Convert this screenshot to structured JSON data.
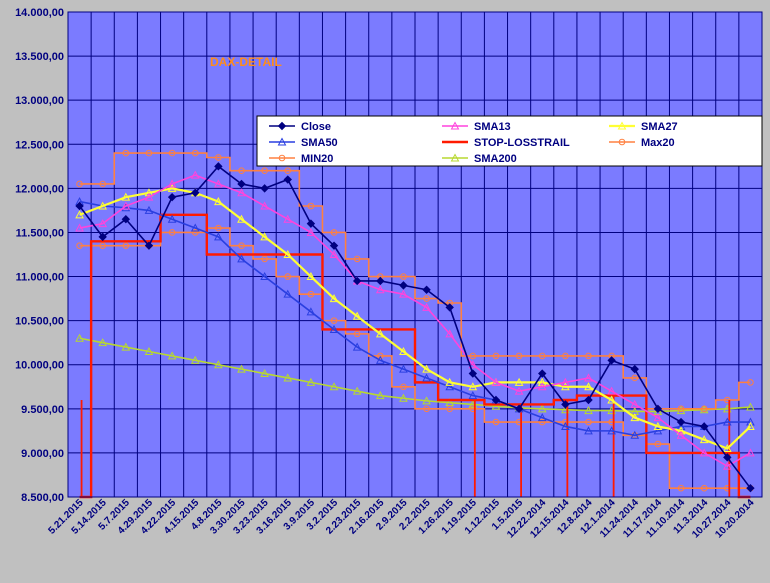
{
  "chart_data": {
    "type": "line",
    "title": "DAX-DETAIL",
    "xlabel": "",
    "ylabel": "",
    "ylim": [
      8500,
      14000
    ],
    "yticks": [
      "8.500,00",
      "9.000,00",
      "9.500,00",
      "10.000,00",
      "10.500,00",
      "11.000,00",
      "11.500,00",
      "12.000,00",
      "12.500,00",
      "13.000,00",
      "13.500,00",
      "14.000,00"
    ],
    "xticks": [
      "5.21.2015",
      "5.14.2015",
      "5.7.2015",
      "4.29.2015",
      "4.22.2015",
      "4.15.2015",
      "4.8.2015",
      "3.30.2015",
      "3.23.2015",
      "3.16.2015",
      "3.9.2015",
      "3.2.2015",
      "2.23.2015",
      "2.16.2015",
      "2.9.2015",
      "2.2.2015",
      "1.26.2015",
      "1.19.2015",
      "1.12.2015",
      "1.5.2015",
      "12.22.2014",
      "12.15.2014",
      "12.8.2014",
      "12.1.2014",
      "11.24.2014",
      "11.17.2014",
      "11.10.2014",
      "11.3.2014",
      "10.27.2014",
      "10.20.2014"
    ],
    "grid": true,
    "legend_position": "top-right",
    "colors": {
      "plot_bg": "#7b7bff",
      "grid": "#000080",
      "page_bg": "#c0c0c0",
      "close": "#000080",
      "sma13": "#ff44dd",
      "sma27": "#ffff33",
      "sma50": "#2a3fe0",
      "stop": "#ff1a00",
      "max20": "#ff8040",
      "min20": "#ff8040",
      "sma200": "#b8d830",
      "close_peak": "#7b2a10"
    },
    "series": [
      {
        "name": "Close",
        "key": "close",
        "x": [
          0,
          1,
          2,
          3,
          4,
          5,
          6,
          7,
          8,
          9,
          10,
          11,
          12,
          13,
          14,
          15,
          16,
          17,
          18,
          19,
          20,
          21,
          22,
          23,
          24,
          25,
          26,
          27,
          28,
          29
        ],
        "values": [
          11800,
          11450,
          11650,
          11350,
          11900,
          11950,
          12250,
          12050,
          12000,
          12100,
          11600,
          11350,
          10950,
          10950,
          10900,
          10850,
          10650,
          9900,
          9600,
          9500,
          9900,
          9550,
          9600,
          10050,
          9950,
          9500,
          9350,
          9300,
          8950,
          8600
        ]
      },
      {
        "name": "SMA13",
        "key": "sma13",
        "x": [
          0,
          1,
          2,
          3,
          4,
          5,
          6,
          7,
          8,
          9,
          10,
          11,
          12,
          13,
          14,
          15,
          16,
          17,
          18,
          19,
          20,
          21,
          22,
          23,
          24,
          25,
          26,
          27,
          28,
          29
        ],
        "values": [
          11550,
          11600,
          11800,
          11900,
          12050,
          12150,
          12050,
          11950,
          11800,
          11650,
          11500,
          11250,
          10950,
          10850,
          10800,
          10650,
          10350,
          10000,
          9800,
          9700,
          9750,
          9800,
          9850,
          9700,
          9550,
          9400,
          9200,
          9000,
          8850,
          9000
        ]
      },
      {
        "name": "SMA27",
        "key": "sma27",
        "x": [
          0,
          1,
          2,
          3,
          4,
          5,
          6,
          7,
          8,
          9,
          10,
          11,
          12,
          13,
          14,
          15,
          16,
          17,
          18,
          19,
          20,
          21,
          22,
          23,
          24,
          25,
          26,
          27,
          28,
          29
        ],
        "values": [
          11700,
          11800,
          11900,
          11950,
          12000,
          11950,
          11850,
          11650,
          11450,
          11250,
          11000,
          10750,
          10550,
          10350,
          10150,
          9950,
          9800,
          9750,
          9800,
          9800,
          9800,
          9750,
          9750,
          9600,
          9400,
          9300,
          9250,
          9150,
          9050,
          9300
        ]
      },
      {
        "name": "SMA50",
        "key": "sma50",
        "x": [
          0,
          1,
          2,
          3,
          4,
          5,
          6,
          7,
          8,
          9,
          10,
          11,
          12,
          13,
          14,
          15,
          16,
          17,
          18,
          19,
          20,
          21,
          22,
          23,
          24,
          25,
          26,
          27,
          28,
          29
        ],
        "values": [
          11850,
          11800,
          11780,
          11750,
          11650,
          11550,
          11450,
          11200,
          11000,
          10800,
          10600,
          10400,
          10200,
          10050,
          9950,
          9850,
          9750,
          9650,
          9600,
          9500,
          9400,
          9300,
          9250,
          9250,
          9200,
          9250,
          9300,
          9300,
          9350,
          9350
        ]
      },
      {
        "name": "STOP-LOSSTRAIL",
        "key": "stop",
        "x": [
          0,
          1,
          2,
          3,
          4,
          5,
          6,
          7,
          8,
          9,
          10,
          11,
          12,
          13,
          14,
          15,
          16,
          17,
          18,
          19,
          20,
          21,
          22,
          23,
          24,
          25,
          26,
          27,
          28,
          29
        ],
        "values": [
          8500,
          11400,
          11400,
          11400,
          11700,
          11700,
          11250,
          11250,
          11250,
          11250,
          11250,
          10400,
          10400,
          10400,
          10400,
          9800,
          9600,
          9600,
          9550,
          9550,
          9550,
          9600,
          9650,
          9650,
          9650,
          9000,
          9000,
          9000,
          9000,
          8500
        ]
      },
      {
        "name": "Max20",
        "key": "max20",
        "x": [
          0,
          1,
          2,
          3,
          4,
          5,
          6,
          7,
          8,
          9,
          10,
          11,
          12,
          13,
          14,
          15,
          16,
          17,
          18,
          19,
          20,
          21,
          22,
          23,
          24,
          25,
          26,
          27,
          28,
          29
        ],
        "values": [
          12050,
          12050,
          12400,
          12400,
          12400,
          12400,
          12350,
          12200,
          12200,
          12200,
          11800,
          11500,
          11200,
          11000,
          11000,
          10750,
          10700,
          10100,
          10100,
          10100,
          10100,
          10100,
          10100,
          10100,
          9850,
          9500,
          9500,
          9500,
          9600,
          9800
        ]
      },
      {
        "name": "MIN20",
        "key": "min20",
        "x": [
          0,
          1,
          2,
          3,
          4,
          5,
          6,
          7,
          8,
          9,
          10,
          11,
          12,
          13,
          14,
          15,
          16,
          17,
          18,
          19,
          20,
          21,
          22,
          23,
          24,
          25,
          26,
          27,
          28,
          29
        ],
        "values": [
          11350,
          11350,
          11350,
          11350,
          11500,
          11500,
          11550,
          11350,
          11200,
          11000,
          10800,
          10500,
          10350,
          10100,
          9750,
          9500,
          9500,
          9500,
          9350,
          9350,
          9350,
          9350,
          9350,
          9350,
          9200,
          9100,
          8600,
          8600,
          8600,
          8600
        ]
      },
      {
        "name": "SMA200",
        "key": "sma200",
        "x": [
          0,
          1,
          2,
          3,
          4,
          5,
          6,
          7,
          8,
          9,
          10,
          11,
          12,
          13,
          14,
          15,
          16,
          17,
          18,
          19,
          20,
          21,
          22,
          23,
          24,
          25,
          26,
          27,
          28,
          29
        ],
        "values": [
          10300,
          10250,
          10200,
          10150,
          10100,
          10050,
          10000,
          9950,
          9900,
          9850,
          9800,
          9750,
          9700,
          9650,
          9620,
          9590,
          9570,
          9550,
          9530,
          9510,
          9500,
          9490,
          9480,
          9480,
          9470,
          9470,
          9480,
          9490,
          9500,
          9520
        ]
      }
    ]
  }
}
